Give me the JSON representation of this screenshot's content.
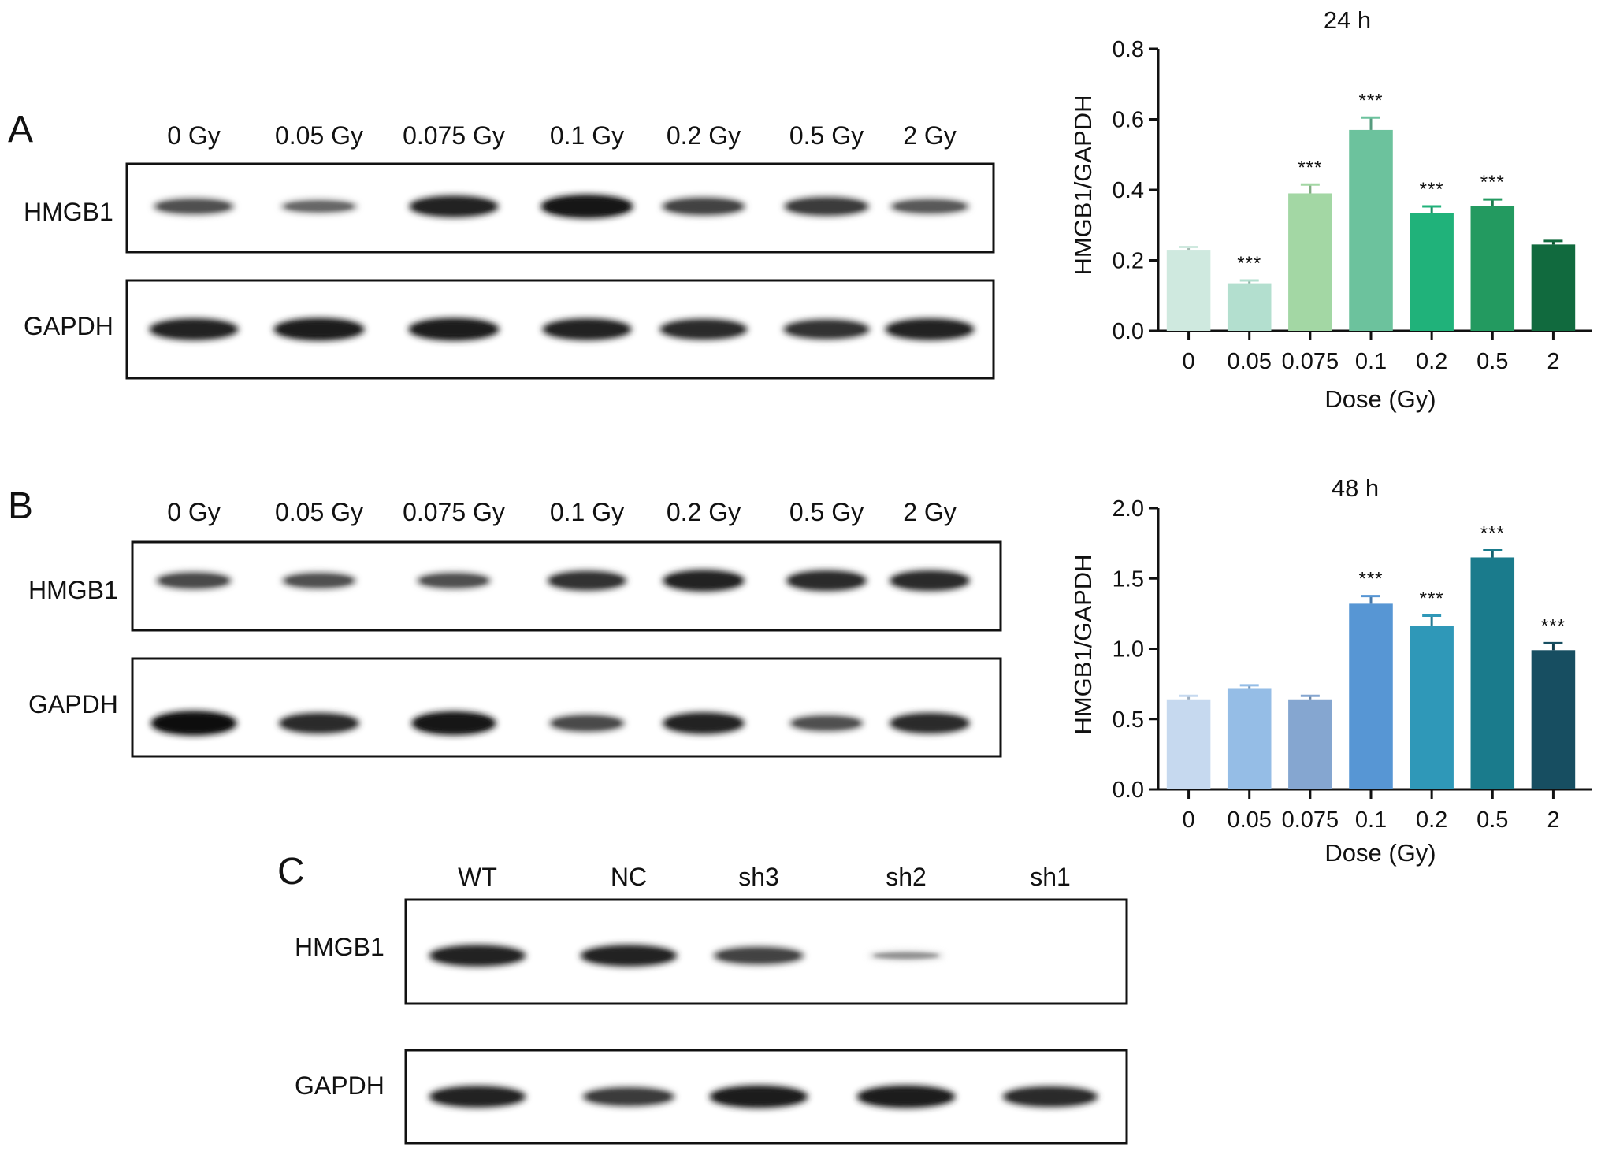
{
  "panels": {
    "A": {
      "letter": "A",
      "lanes": [
        "0 Gy",
        "0.05 Gy",
        "0.075 Gy",
        "0.1 Gy",
        "0.2 Gy",
        "0.5 Gy",
        "2 Gy"
      ],
      "rows": [
        "HMGB1",
        "GAPDH"
      ],
      "band_intensity": {
        "HMGB1": [
          0.55,
          0.4,
          0.85,
          0.95,
          0.65,
          0.7,
          0.5
        ],
        "GAPDH": [
          0.85,
          0.9,
          0.9,
          0.85,
          0.8,
          0.75,
          0.85
        ]
      }
    },
    "B": {
      "letter": "B",
      "lanes": [
        "0 Gy",
        "0.05 Gy",
        "0.075 Gy",
        "0.1 Gy",
        "0.2 Gy",
        "0.5 Gy",
        "2 Gy"
      ],
      "rows": [
        "HMGB1",
        "GAPDH"
      ],
      "band_intensity": {
        "HMGB1": [
          0.6,
          0.55,
          0.55,
          0.75,
          0.85,
          0.8,
          0.8
        ],
        "GAPDH": [
          1.0,
          0.8,
          0.95,
          0.6,
          0.85,
          0.55,
          0.8
        ]
      }
    },
    "C": {
      "letter": "C",
      "lanes": [
        "WT",
        "NC",
        "sh3",
        "sh2",
        "sh1"
      ],
      "rows": [
        "HMGB1",
        "GAPDH"
      ],
      "band_intensity": {
        "HMGB1": [
          0.85,
          0.85,
          0.65,
          0.12,
          0.02
        ],
        "GAPDH": [
          0.85,
          0.7,
          0.9,
          0.9,
          0.8
        ]
      }
    }
  },
  "chart_data": [
    {
      "type": "bar",
      "title": "24 h",
      "xlabel": "Dose (Gy)",
      "ylabel": "HMGB1/GAPDH",
      "categories": [
        "0",
        "0.05",
        "0.075",
        "0.1",
        "0.2",
        "0.5",
        "2"
      ],
      "values": [
        0.23,
        0.135,
        0.39,
        0.57,
        0.335,
        0.355,
        0.245
      ],
      "errors": [
        0.008,
        0.008,
        0.025,
        0.035,
        0.018,
        0.018,
        0.01
      ],
      "significance": [
        "",
        "***",
        "***",
        "***",
        "***",
        "***",
        ""
      ],
      "ylim": [
        0,
        0.8
      ],
      "yticks": [
        "0.0",
        "0.2",
        "0.4",
        "0.6",
        "0.8"
      ],
      "colors": [
        "#cfe9df",
        "#b3dfcf",
        "#a3d7a4",
        "#6cc29d",
        "#20b27a",
        "#239a60",
        "#116a3e"
      ]
    },
    {
      "type": "bar",
      "title": "48 h",
      "xlabel": "Dose (Gy)",
      "ylabel": "HMGB1/GAPDH",
      "categories": [
        "0",
        "0.05",
        "0.075",
        "0.1",
        "0.2",
        "0.5",
        "2"
      ],
      "values": [
        0.64,
        0.72,
        0.64,
        1.32,
        1.16,
        1.65,
        0.99
      ],
      "errors": [
        0.025,
        0.02,
        0.025,
        0.055,
        0.075,
        0.05,
        0.05
      ],
      "significance": [
        "",
        "",
        "",
        "***",
        "***",
        "***",
        "***"
      ],
      "ylim": [
        0,
        2.0
      ],
      "yticks": [
        "0.0",
        "0.5",
        "1.0",
        "1.5",
        "2.0"
      ],
      "colors": [
        "#c6d9ef",
        "#95bde6",
        "#85a6d0",
        "#5796d4",
        "#2f98b8",
        "#1a7b8c",
        "#174e61"
      ]
    }
  ]
}
